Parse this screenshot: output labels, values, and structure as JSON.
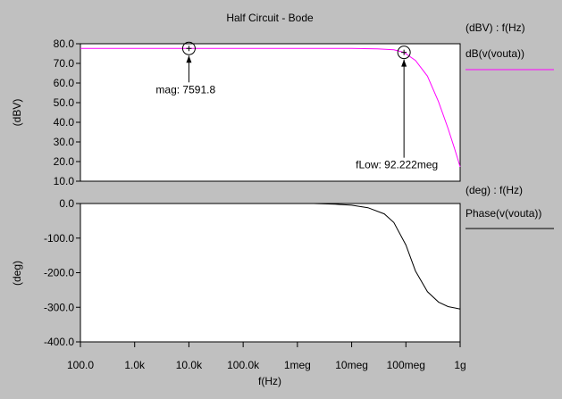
{
  "chart_data": {
    "title": "Half Circuit - Bode",
    "type": "line",
    "xlabel": "f(Hz)",
    "xscale": "log",
    "xlim": [
      100,
      1000000000
    ],
    "x_tick_labels": [
      "100.0",
      "1.0k",
      "10.0k",
      "100.0k",
      "1meg",
      "10meg",
      "100meg",
      "1g"
    ],
    "panels": [
      {
        "ylabel": "(dBV)",
        "ylim": [
          10,
          80
        ],
        "y_tick_labels": [
          "80.0",
          "70.0",
          "60.0",
          "50.0",
          "40.0",
          "30.0",
          "20.0",
          "10.0"
        ],
        "legend_header": "(dBV) : f(Hz)",
        "legend_position": "right",
        "series": [
          {
            "name": "dB(v(vouta))",
            "color": "#ff00ff",
            "x": [
              100,
              1000,
              10000,
              100000,
              1000000,
              10000000,
              30000000,
              60000000,
              92222000,
              150000000,
              250000000,
              400000000,
              600000000,
              800000000,
              1000000000
            ],
            "y": [
              77.6,
              77.6,
              77.6,
              77.6,
              77.6,
              77.6,
              77.4,
              76.9,
              75.6,
              71.5,
              63.5,
              50.5,
              36.8,
              26.1,
              17.3
            ]
          }
        ],
        "annotations": [
          {
            "text": "mag: 7591.8",
            "x": 10000,
            "y": 77.6
          },
          {
            "text": "fLow: 92.222meg",
            "x": 92222000,
            "y": 75.6
          }
        ]
      },
      {
        "ylabel": "(deg)",
        "ylim": [
          -400,
          0
        ],
        "y_tick_labels": [
          "0.0",
          "-100.0",
          "-200.0",
          "-300.0",
          "-400.0"
        ],
        "legend_header": "(deg) : f(Hz)",
        "legend_position": "right",
        "series": [
          {
            "name": "Phase(v(vouta))",
            "color": "#000000",
            "x": [
              2000000,
              5000000,
              10000000,
              20000000,
              40000000,
              60000000,
              100000000,
              150000000,
              250000000,
              400000000,
              600000000,
              1000000000
            ],
            "y": [
              0,
              -2,
              -5,
              -12,
              -30,
              -55,
              -120,
              -195,
              -255,
              -285,
              -298,
              -305
            ]
          }
        ]
      }
    ]
  }
}
